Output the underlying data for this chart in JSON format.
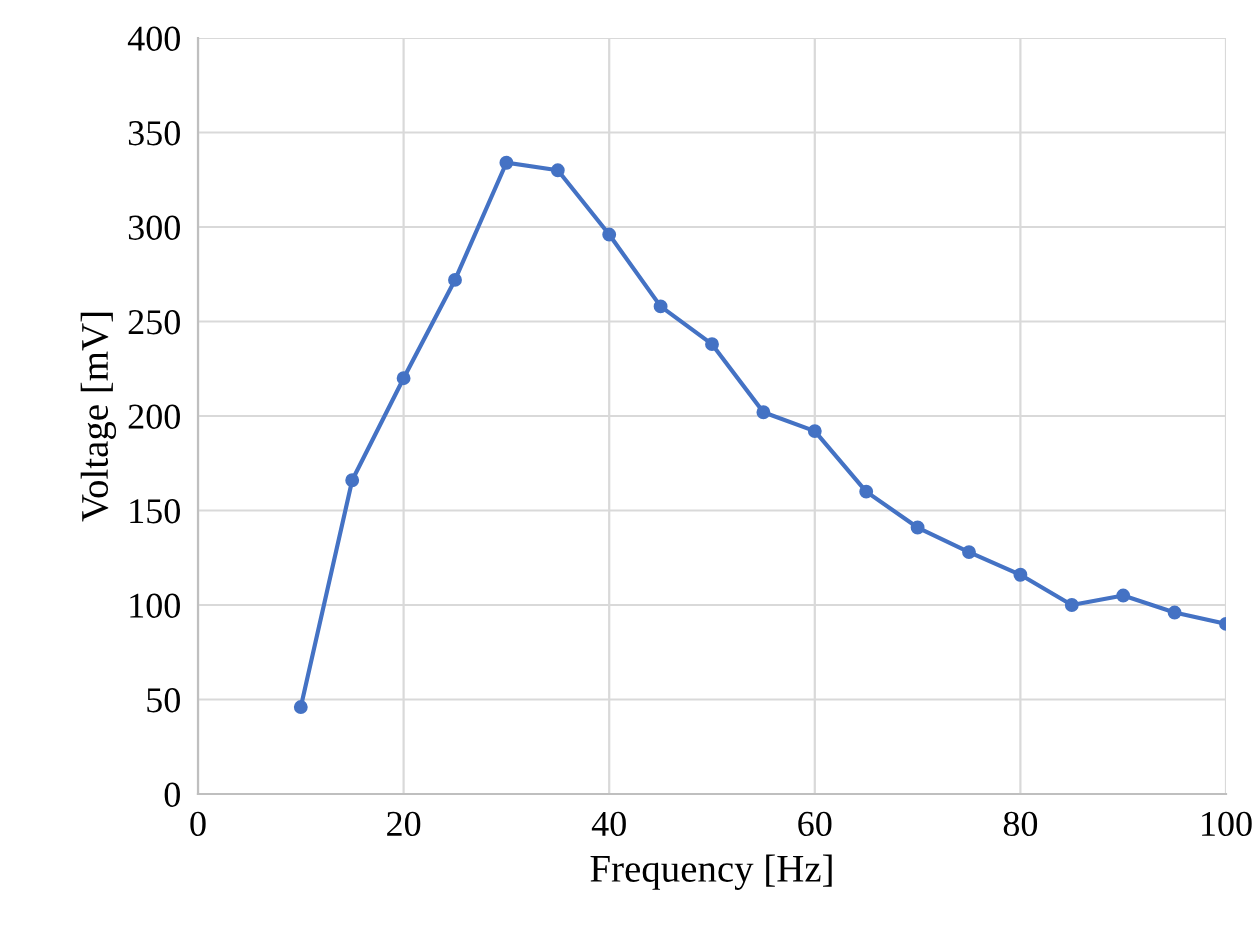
{
  "chart_data": {
    "type": "line",
    "xlabel": "Frequency [Hz]",
    "ylabel": "Voltage [mV]",
    "x": [
      10,
      15,
      20,
      25,
      30,
      35,
      40,
      45,
      50,
      55,
      60,
      65,
      70,
      75,
      80,
      85,
      90,
      95,
      100
    ],
    "series": [
      {
        "color": "#4472c4",
        "values": [
          46,
          166,
          220,
          272,
          334,
          330,
          296,
          258,
          238,
          202,
          192,
          160,
          141,
          128,
          116,
          100,
          105,
          96,
          90
        ]
      }
    ],
    "xlim": [
      0,
      100
    ],
    "xticks": [
      0,
      20,
      40,
      60,
      80,
      100
    ],
    "ylim": [
      0,
      400
    ],
    "yticks": [
      0,
      50,
      100,
      150,
      200,
      250,
      300,
      350,
      400
    ],
    "grid": true,
    "marker": "circle",
    "line_style": "solid"
  }
}
